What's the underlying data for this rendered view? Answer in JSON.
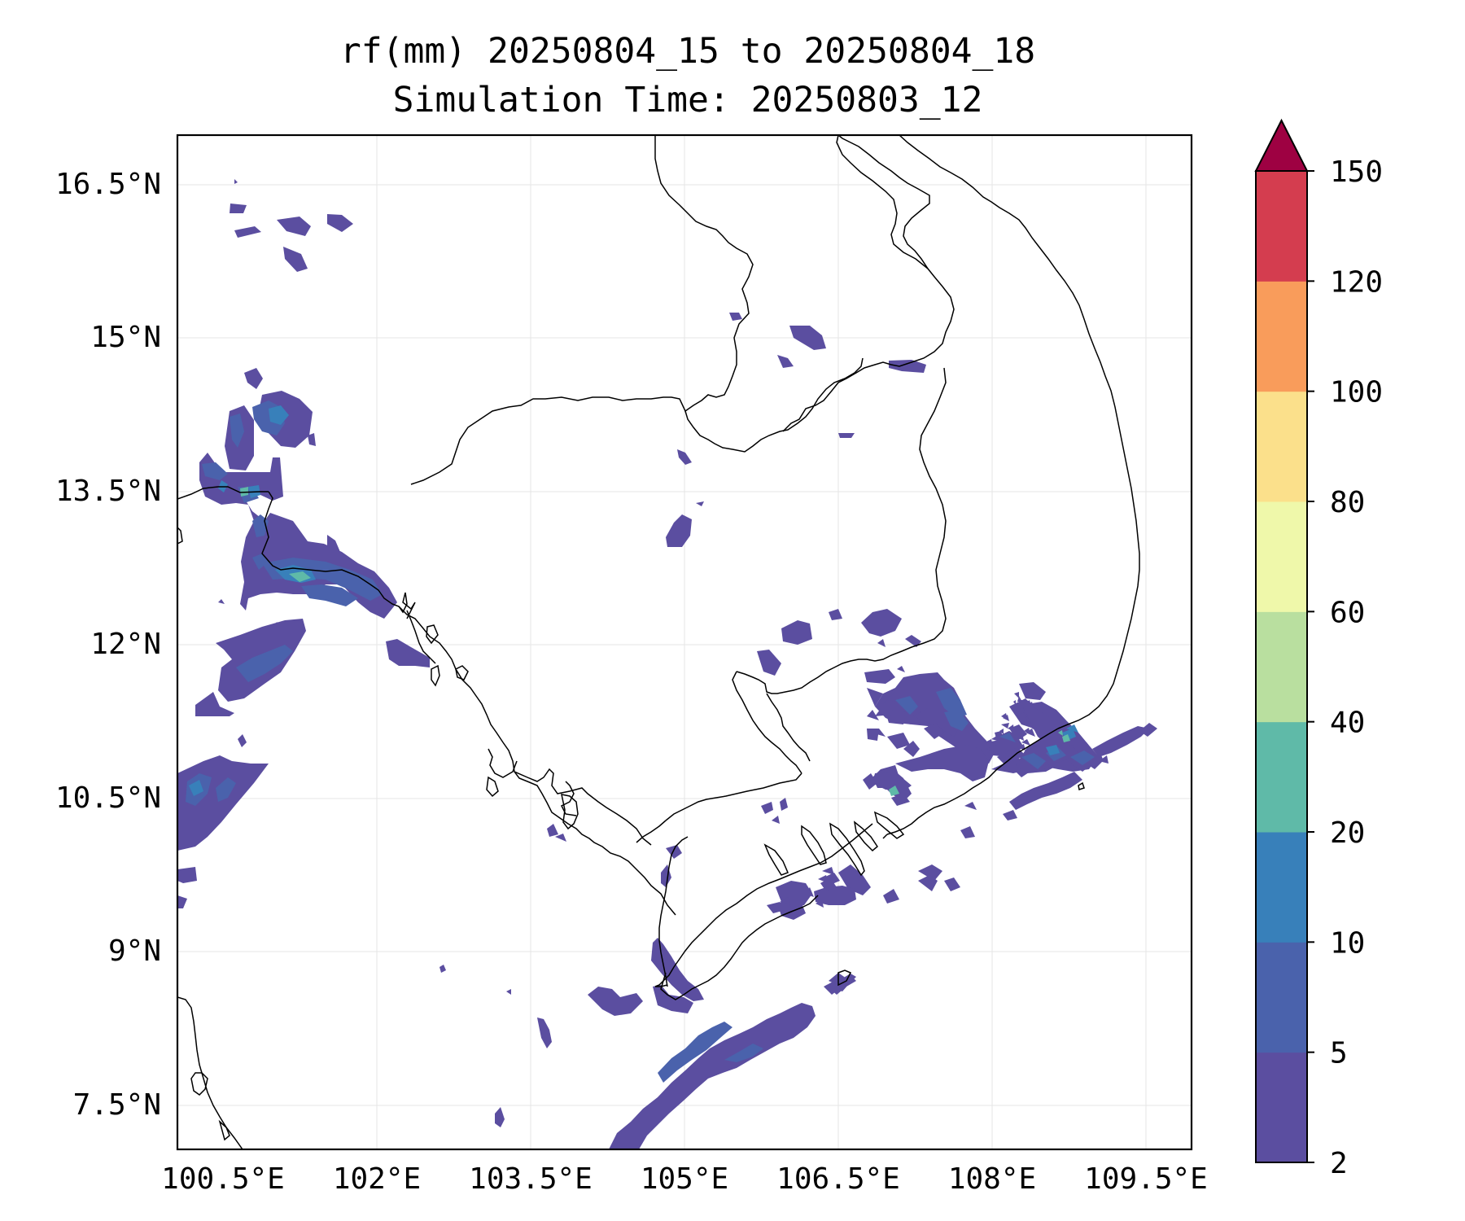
{
  "title": {
    "line1": "rf(mm) 20250804_15 to 20250804_18",
    "line2": "Simulation Time: 20250803_12"
  },
  "map": {
    "lon_ticks": [
      "100.5°E",
      "102°E",
      "103.5°E",
      "105°E",
      "106.5°E",
      "108°E",
      "109.5°E"
    ],
    "lat_ticks": [
      "16.5°N",
      "15°N",
      "13.5°N",
      "12°N",
      "10.5°N",
      "9°N",
      "7.5°N"
    ],
    "lon_range": [
      100.0,
      109.9
    ],
    "lat_range": [
      7.0,
      16.9
    ],
    "grid": true
  },
  "colorbar": {
    "levels": [
      "2",
      "5",
      "10",
      "20",
      "40",
      "60",
      "80",
      "100",
      "120",
      "150"
    ],
    "colors": [
      "#5b4ea0",
      "#4a62ac",
      "#3880ba",
      "#5fbaa8",
      "#b9df9f",
      "#eff8aa",
      "#fbe08b",
      "#f99c5b",
      "#d43d4f",
      "#9e0142"
    ],
    "extend": "max"
  }
}
